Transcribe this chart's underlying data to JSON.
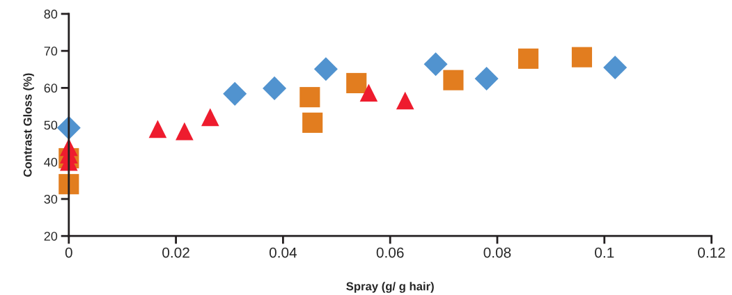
{
  "chart_data": {
    "type": "scatter",
    "xlabel": "Spray (g/ g hair)",
    "ylabel": "Contrast Gloss (%)",
    "xlim": [
      0,
      0.12
    ],
    "xticks": [
      0,
      0.02,
      0.04,
      0.06,
      0.08,
      0.1,
      0.12
    ],
    "ylim": [
      20,
      80
    ],
    "yticks": [
      20,
      30,
      40,
      50,
      60,
      70,
      80
    ],
    "grid": false,
    "legend": false,
    "series": [
      {
        "color": "#e27d1f",
        "marker": "square",
        "x": [
          0,
          0,
          0.045,
          0.0455,
          0.0537,
          0.0718,
          0.0858,
          0.0958
        ],
        "values": [
          41,
          34,
          57.5,
          50.6,
          61.3,
          62.1,
          67.9,
          68.3
        ]
      },
      {
        "color": "#ee1c2e",
        "marker": "triangle",
        "x": [
          0,
          0,
          0,
          0.0166,
          0.0216,
          0.0264,
          0.056,
          0.0628
        ],
        "values": [
          44,
          42,
          40,
          48.9,
          48.3,
          52.1,
          58.7,
          56.6
        ]
      },
      {
        "color": "#5193cf",
        "marker": "diamond",
        "x": [
          0,
          0.031,
          0.0384,
          0.048,
          0.0685,
          0.078,
          0.102
        ],
        "values": [
          49.2,
          58.4,
          59.9,
          65.1,
          66.4,
          62.5,
          65.5
        ]
      }
    ]
  }
}
